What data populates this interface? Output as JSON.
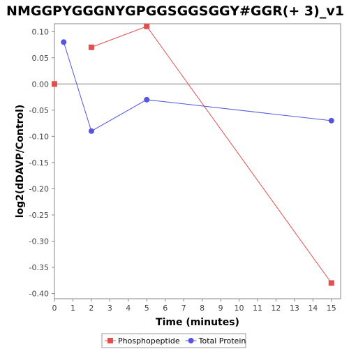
{
  "chart_data": {
    "type": "line",
    "title": "NMGGPYGGGNYGPGGSGGSGGY#GGR(+ 3)_v1",
    "xlabel": "Time (minutes)",
    "ylabel": "log2(dDAVP/Control)",
    "xlim": [
      0,
      15.5
    ],
    "ylim": [
      -0.41,
      0.115
    ],
    "xticks": [
      0,
      1,
      2,
      3,
      4,
      5,
      6,
      7,
      8,
      9,
      10,
      11,
      12,
      13,
      14,
      15
    ],
    "yticks": [
      0.1,
      0.05,
      0.0,
      -0.05,
      -0.1,
      -0.15,
      -0.2,
      -0.25,
      -0.3,
      -0.35,
      -0.4
    ],
    "ytick_labels": [
      "0.10",
      "0.05",
      "0.00",
      "-0.05",
      "-0.10",
      "-0.15",
      "-0.20",
      "-0.25",
      "-0.30",
      "-0.35",
      "-0.40"
    ],
    "zero_line": true,
    "grid": false,
    "legend_position": "bottom",
    "series": [
      {
        "name": "Phosphopeptide",
        "color": "#e05050",
        "marker": "square",
        "segments": [
          [
            {
              "x": 0,
              "y": 0.0
            }
          ],
          [
            {
              "x": 2,
              "y": 0.07
            },
            {
              "x": 5,
              "y": 0.11
            },
            {
              "x": 15,
              "y": -0.38
            }
          ]
        ]
      },
      {
        "name": "Total Protein",
        "color": "#5555e0",
        "marker": "circle",
        "segments": [
          [
            {
              "x": 0.5,
              "y": 0.08
            },
            {
              "x": 2,
              "y": -0.09
            },
            {
              "x": 5,
              "y": -0.03
            },
            {
              "x": 15,
              "y": -0.07
            }
          ]
        ]
      }
    ]
  }
}
